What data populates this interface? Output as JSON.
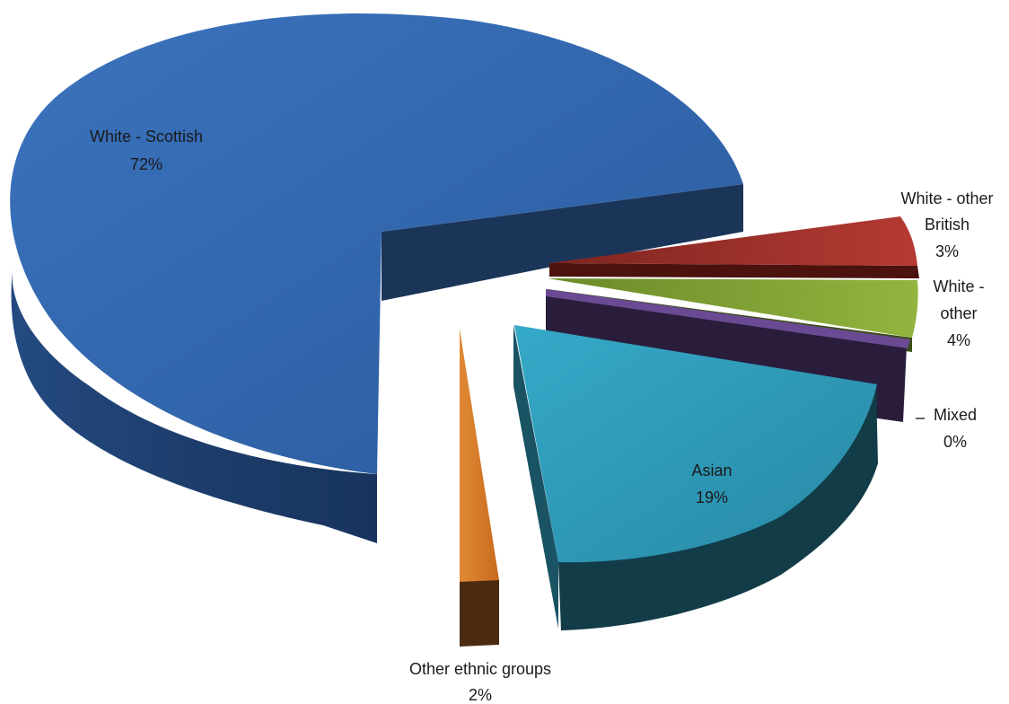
{
  "chart_data": {
    "type": "pie",
    "style": "3d-exploded",
    "legend": "none",
    "slices": [
      {
        "label": "White - Scottish",
        "value": 72,
        "value_label": "72%",
        "color": "#2e62a8",
        "side_color": "#1c3b66"
      },
      {
        "label": "White - other British",
        "value": 3,
        "value_label": "3%",
        "color": "#a3332e",
        "side_color": "#4e140f"
      },
      {
        "label": "White - other",
        "value": 4,
        "value_label": "4%",
        "color": "#82a436",
        "side_color": "#3f5219"
      },
      {
        "label": "Mixed",
        "value": 0,
        "value_label": "0%",
        "color": "#6a4a93",
        "side_color": "#2b1f3d"
      },
      {
        "label": "Asian",
        "value": 19,
        "value_label": "19%",
        "color": "#2f9dbd",
        "side_color": "#123f4a"
      },
      {
        "label": "Other ethnic groups",
        "value": 2,
        "value_label": "2%",
        "color": "#d87a28",
        "side_color": "#4a2a10"
      }
    ]
  }
}
